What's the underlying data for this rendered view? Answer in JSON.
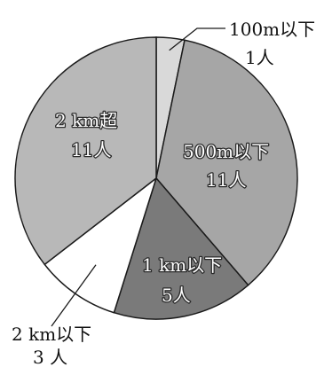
{
  "chart_data": {
    "type": "pie",
    "title": "",
    "slices": [
      {
        "label": "100m以下",
        "count": "1人",
        "value": 1,
        "color": "#d9d9d9",
        "label_style": "outside"
      },
      {
        "label": "500m以下",
        "count": "11人",
        "value": 11,
        "color": "#a6a6a6",
        "label_style": "inside"
      },
      {
        "label": "1 km以下",
        "count": "5人",
        "value": 5,
        "color": "#7a7a7a",
        "label_style": "inside"
      },
      {
        "label": "2 km以下",
        "count": "3 人",
        "value": 3,
        "color": "#ffffff",
        "label_style": "outside"
      },
      {
        "label": "2 km超",
        "count": "11人",
        "value": 11,
        "color": "#b8b8b8",
        "label_style": "inside"
      }
    ]
  }
}
